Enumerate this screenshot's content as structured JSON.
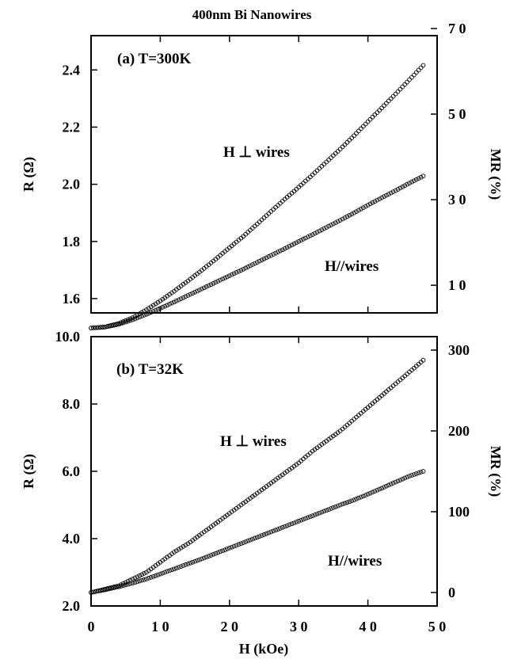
{
  "figure_title": "400nm Bi Nanowires",
  "x_axis_label": "H (kOe)",
  "chart_data": [
    {
      "type": "scatter",
      "panel_label": "(a) T=300K",
      "x_ticks": [
        "0",
        "1 0",
        "2 0",
        "3 0",
        "4 0",
        "5 0"
      ],
      "xlim": [
        0,
        50
      ],
      "ylabel": "R (Ω)",
      "ylim": [
        1.55,
        2.52
      ],
      "y_ticks": [
        "1.6",
        "1.8",
        "2.0",
        "2.2",
        "2.4"
      ],
      "y_tick_values": [
        1.6,
        1.8,
        2.0,
        2.2,
        2.4
      ],
      "y2label": "MR (%)",
      "y2_ticks": [
        "1 0",
        "3 0",
        "5 0",
        "7 0"
      ],
      "y2_tick_values": [
        10,
        30,
        50,
        70
      ],
      "series": [
        {
          "name": "H ⊥ wires",
          "x": [
            0,
            2,
            4,
            6,
            8,
            10,
            12,
            14,
            16,
            18,
            20,
            22,
            24,
            26,
            28,
            30,
            32,
            34,
            36,
            38,
            40,
            42,
            44,
            46,
            48
          ],
          "values": [
            1.497,
            1.501,
            1.513,
            1.533,
            1.561,
            1.592,
            1.626,
            1.662,
            1.699,
            1.738,
            1.778,
            1.818,
            1.861,
            1.905,
            1.948,
            1.99,
            2.033,
            2.078,
            2.123,
            2.17,
            2.219,
            2.267,
            2.316,
            2.366,
            2.416
          ]
        },
        {
          "name": "H//wires",
          "x": [
            0,
            2,
            4,
            6,
            8,
            10,
            12,
            14,
            16,
            18,
            20,
            22,
            24,
            26,
            28,
            30,
            32,
            34,
            36,
            38,
            40,
            42,
            44,
            46,
            48
          ],
          "values": [
            1.497,
            1.5,
            1.51,
            1.526,
            1.545,
            1.566,
            1.588,
            1.611,
            1.634,
            1.657,
            1.68,
            1.703,
            1.727,
            1.751,
            1.775,
            1.8,
            1.824,
            1.849,
            1.874,
            1.9,
            1.927,
            1.953,
            1.978,
            2.004,
            2.029
          ]
        }
      ]
    },
    {
      "type": "scatter",
      "panel_label": "(b) T=32K",
      "x_ticks": [
        "0",
        "1 0",
        "2 0",
        "3 0",
        "4 0",
        "5 0"
      ],
      "xlim": [
        0,
        50
      ],
      "ylabel": "R (Ω)",
      "ylim": [
        2.0,
        10.0
      ],
      "y_ticks": [
        "2.0",
        "4.0",
        "6.0",
        "8.0",
        "10.0"
      ],
      "y_tick_values": [
        2.0,
        4.0,
        6.0,
        8.0,
        10.0
      ],
      "y2label": "MR (%)",
      "y2_ticks": [
        "0",
        "100",
        "200",
        "300"
      ],
      "y2_tick_values": [
        0,
        100,
        200,
        300
      ],
      "series": [
        {
          "name": "H ⊥ wires",
          "x": [
            0,
            2,
            4,
            6,
            8,
            10,
            12,
            14,
            16,
            18,
            20,
            22,
            24,
            26,
            28,
            30,
            32,
            34,
            36,
            38,
            40,
            42,
            44,
            46,
            48
          ],
          "values": [
            2.4,
            2.5,
            2.6,
            2.8,
            3.0,
            3.3,
            3.6,
            3.85,
            4.15,
            4.45,
            4.75,
            5.05,
            5.35,
            5.65,
            5.95,
            6.25,
            6.6,
            6.9,
            7.2,
            7.55,
            7.9,
            8.25,
            8.6,
            8.95,
            9.3
          ]
        },
        {
          "name": "H//wires",
          "x": [
            0,
            2,
            4,
            6,
            8,
            10,
            12,
            14,
            16,
            18,
            20,
            22,
            24,
            26,
            28,
            30,
            32,
            34,
            36,
            38,
            40,
            42,
            44,
            46,
            48
          ],
          "values": [
            2.4,
            2.48,
            2.57,
            2.68,
            2.8,
            2.95,
            3.1,
            3.25,
            3.4,
            3.56,
            3.72,
            3.88,
            4.04,
            4.2,
            4.36,
            4.52,
            4.68,
            4.84,
            5.0,
            5.15,
            5.32,
            5.5,
            5.68,
            5.86,
            6.0
          ]
        }
      ]
    }
  ]
}
